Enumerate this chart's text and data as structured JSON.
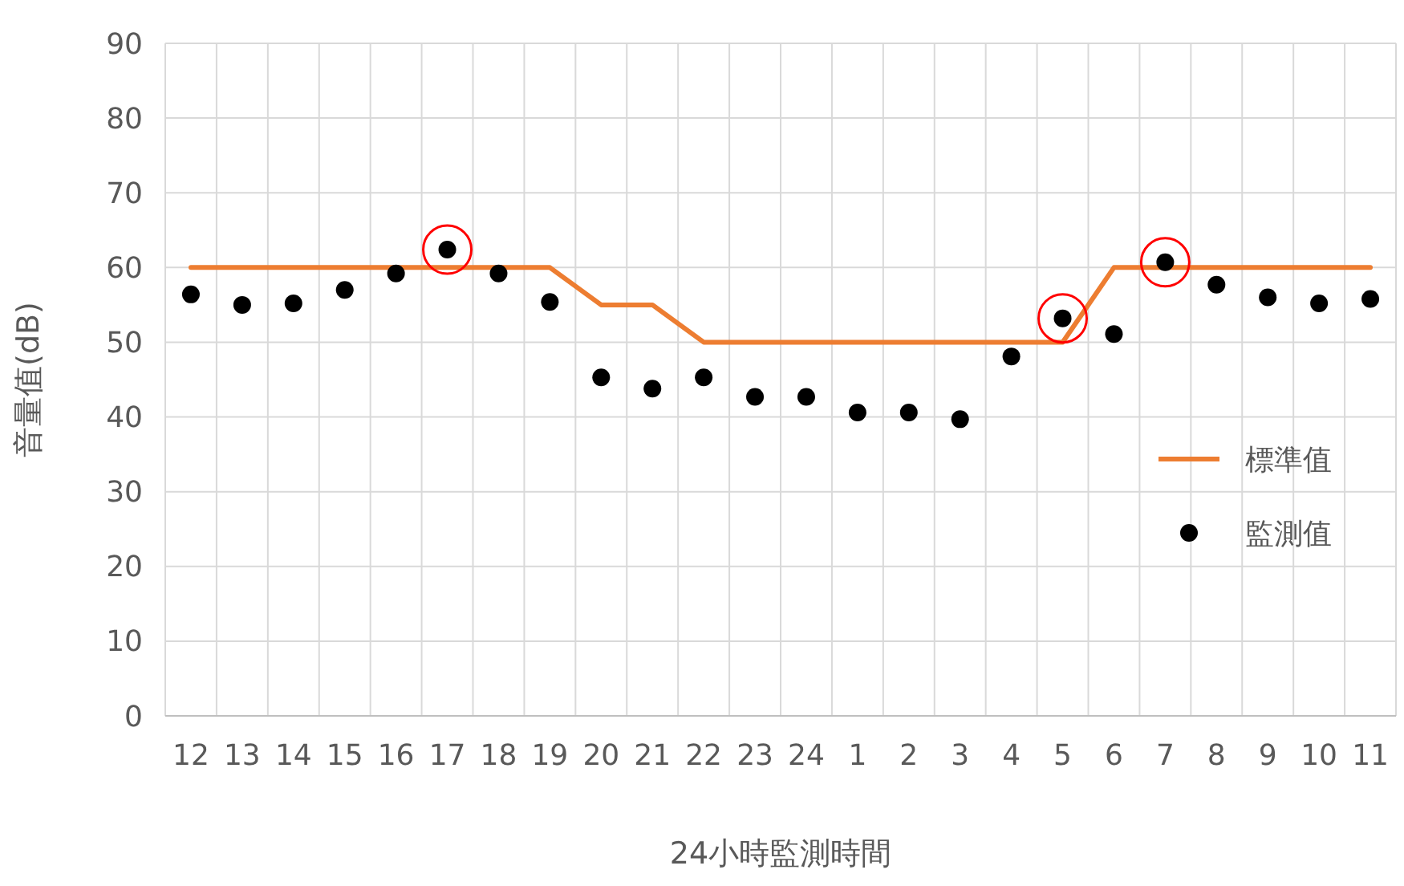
{
  "chart_data": {
    "type": "scatter",
    "xlabel": "24小時監測時間",
    "ylabel": "音量值(dB)",
    "categories": [
      "12",
      "13",
      "14",
      "15",
      "16",
      "17",
      "18",
      "19",
      "20",
      "21",
      "22",
      "23",
      "24",
      "1",
      "2",
      "3",
      "4",
      "5",
      "6",
      "7",
      "8",
      "9",
      "10",
      "11"
    ],
    "series": [
      {
        "name": "標準值",
        "type": "line",
        "marker": "none",
        "color": "#ed7d31",
        "values": [
          60,
          60,
          60,
          60,
          60,
          60,
          60,
          60,
          55,
          55,
          50,
          50,
          50,
          50,
          50,
          50,
          50,
          50,
          60,
          60,
          60,
          60,
          60,
          60
        ]
      },
      {
        "name": "監測值",
        "color": "#000000",
        "values": [
          56.4,
          55,
          55.2,
          57,
          59.2,
          62.4,
          59.2,
          55.4,
          45.3,
          43.8,
          45.3,
          42.7,
          42.7,
          40.6,
          40.6,
          39.7,
          48.1,
          53.2,
          51.1,
          60.7,
          57.7,
          56,
          55.2,
          55.8
        ]
      },
      {
        "color": "#ff0000",
        "values": [
          null,
          null,
          null,
          null,
          null,
          62.4,
          null,
          null,
          null,
          null,
          null,
          null,
          null,
          null,
          null,
          null,
          null,
          53.2,
          null,
          60.7,
          null,
          null,
          null,
          null
        ]
      }
    ],
    "ylim": [
      0,
      90
    ],
    "yticks": [
      0,
      10,
      20,
      30,
      40,
      50,
      60,
      70,
      80,
      90
    ],
    "grid": true,
    "legend": "right"
  }
}
